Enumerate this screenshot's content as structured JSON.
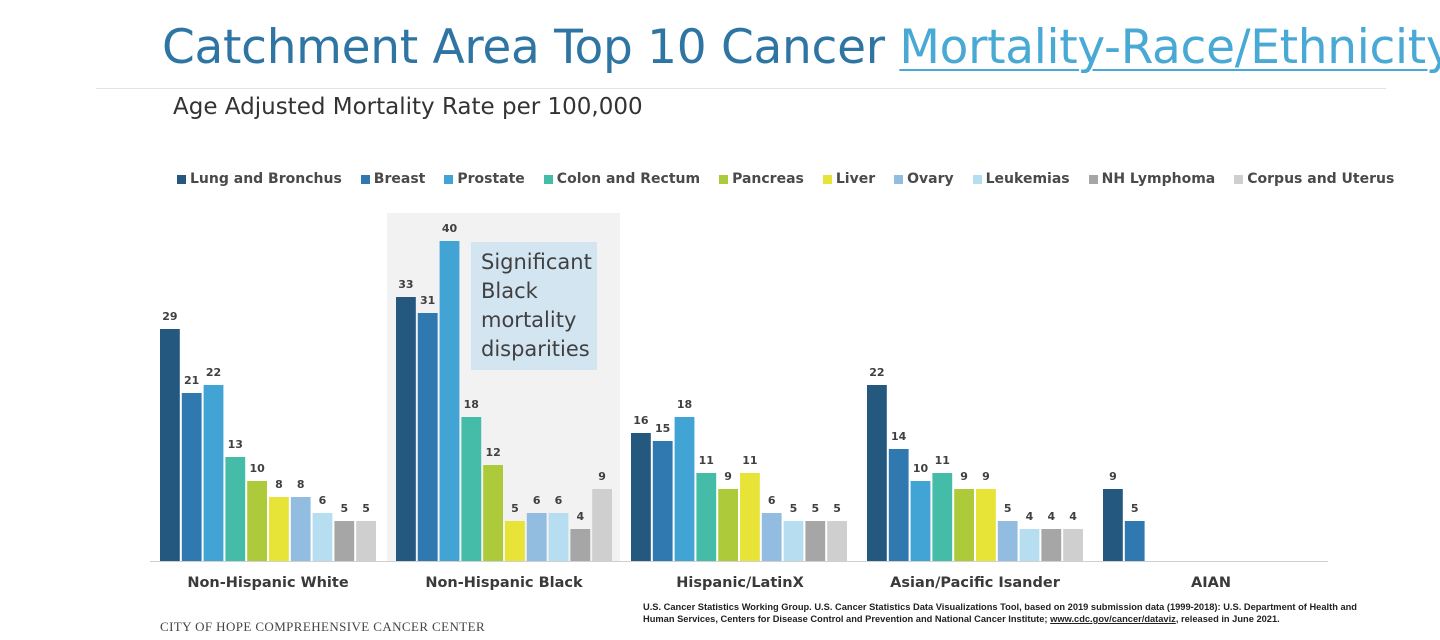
{
  "header": {
    "title_plain": "Catchment Area Top 10 Cancer ",
    "title_link": "Mortality-Race/Ethnicity",
    "subtitle": "Age Adjusted Mortality Rate per 100,000"
  },
  "callout": {
    "text": "Significant Black mortality disparities"
  },
  "footer": {
    "org": "CITY OF HOPE COMPREHENSIVE CANCER CENTER",
    "source_pre": "U.S. Cancer Statistics Working Group. U.S. Cancer Statistics Data Visualizations Tool, based on 2019 submission data (1999-2018): U.S. Department of Health and Human Services, Centers for Disease Control and Prevention and National Cancer Institute; ",
    "source_link": "www.cdc.gov/cancer/dataviz",
    "source_post": ", released in June 2021."
  },
  "chart_data": {
    "type": "bar",
    "title": "Age Adjusted Mortality Rate per 100,000",
    "categories": [
      "Non-Hispanic White",
      "Non-Hispanic Black",
      "Hispanic/LatinX",
      "Asian/Pacific Isander",
      "AIAN"
    ],
    "highlight_category": "Non-Hispanic Black",
    "legend_position": "top",
    "ylim": [
      0,
      44
    ],
    "grid": false,
    "series": [
      {
        "name": "Lung and Bronchus",
        "color": "#24587e",
        "values": [
          29,
          33,
          16,
          22,
          9
        ]
      },
      {
        "name": "Breast",
        "color": "#2f78b0",
        "values": [
          21,
          31,
          15,
          14,
          5
        ]
      },
      {
        "name": "Prostate",
        "color": "#41a4d5",
        "values": [
          22,
          40,
          18,
          10,
          null
        ]
      },
      {
        "name": "Colon and Rectum",
        "color": "#45bca7",
        "values": [
          13,
          18,
          11,
          11,
          null
        ]
      },
      {
        "name": "Pancreas",
        "color": "#acca39",
        "values": [
          10,
          12,
          9,
          9,
          null
        ]
      },
      {
        "name": "Liver",
        "color": "#e7e337",
        "values": [
          8,
          5,
          11,
          9,
          null
        ]
      },
      {
        "name": "Ovary",
        "color": "#93bde0",
        "values": [
          8,
          6,
          6,
          5,
          null
        ]
      },
      {
        "name": "Leukemias",
        "color": "#b7def0",
        "values": [
          6,
          6,
          5,
          4,
          null
        ]
      },
      {
        "name": "NH Lymphoma",
        "color": "#a6a6a6",
        "values": [
          5,
          4,
          5,
          4,
          null
        ]
      },
      {
        "name": "Corpus and Uterus",
        "color": "#cfcfcf",
        "values": [
          5,
          9,
          5,
          4,
          null
        ]
      }
    ]
  }
}
